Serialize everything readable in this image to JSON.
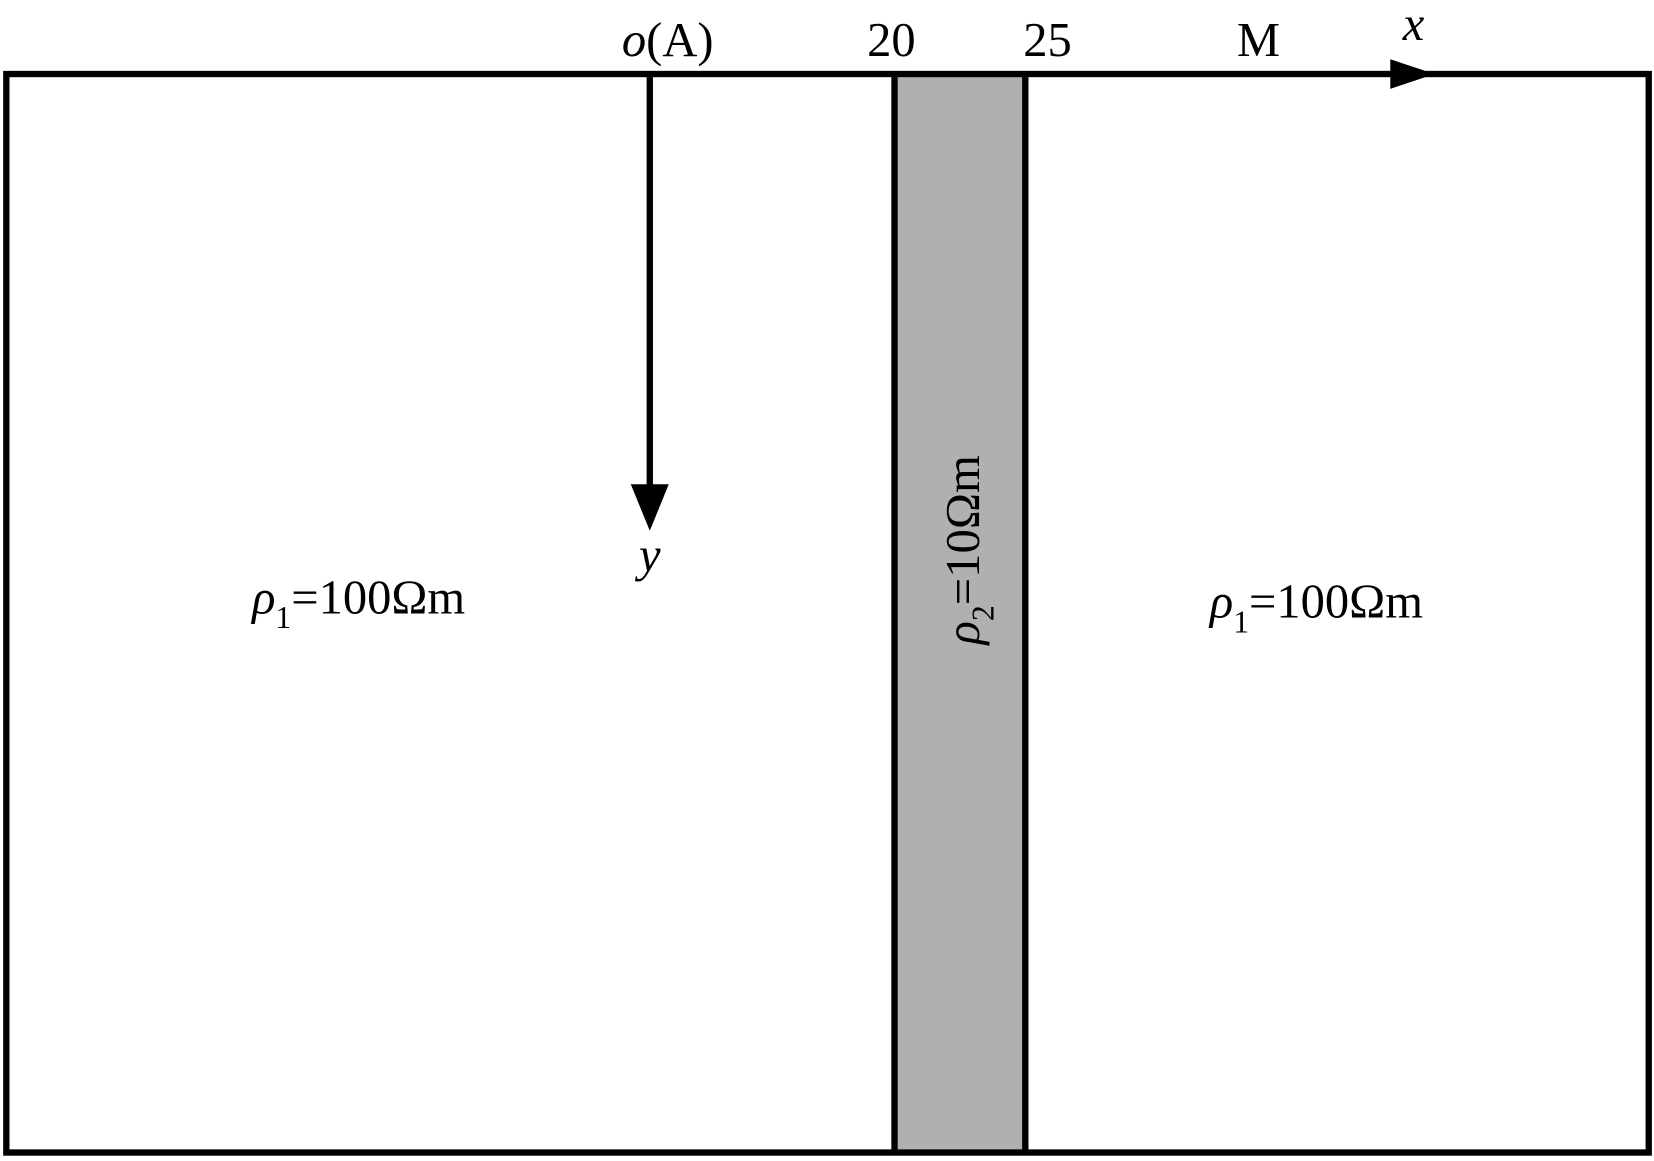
{
  "axes": {
    "origin_symbol": "o",
    "origin_point": "(A)",
    "boundary_left": "20",
    "boundary_right": "25",
    "point_m": "M",
    "x_label": "x",
    "y_label": "y"
  },
  "regions": [
    {
      "symbol": "ρ",
      "subscript": "1",
      "value": "=100Ωm"
    },
    {
      "symbol": "ρ",
      "subscript": "2",
      "value": "=10Ωm"
    },
    {
      "symbol": "ρ",
      "subscript": "1",
      "value": "=100Ωm"
    }
  ]
}
